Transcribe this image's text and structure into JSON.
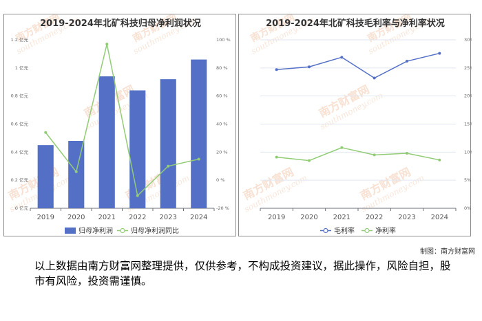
{
  "watermark": {
    "brand": "南方财富网",
    "url": "southmoney.com"
  },
  "chart_data": [
    {
      "type": "bar+line",
      "title": "2019-2024年北矿科技归母净利润状况",
      "categories": [
        "2019",
        "2020",
        "2021",
        "2022",
        "2023",
        "2024"
      ],
      "y_left": {
        "ticks": [
          "0 亿元",
          "0.2 亿元",
          "0.4 亿元",
          "0.6 亿元",
          "0.8 亿元",
          "1 亿元",
          "1.2 亿元"
        ],
        "ylim": [
          0,
          1.2
        ],
        "unit": "亿元"
      },
      "y_right": {
        "ticks": [
          "-20 %",
          "0 %",
          "20 %",
          "40 %",
          "60 %",
          "80 %",
          "100 %"
        ],
        "ylim": [
          -20,
          100
        ],
        "unit": "%"
      },
      "series": [
        {
          "name": "归母净利润",
          "kind": "bar",
          "axis": "left",
          "color": "#5470c6",
          "values": [
            0.45,
            0.48,
            0.94,
            0.84,
            0.92,
            1.06
          ]
        },
        {
          "name": "归母净利润同比",
          "kind": "line",
          "axis": "right",
          "color": "#91cc75",
          "values": [
            34,
            6,
            97,
            -11,
            10,
            15
          ]
        }
      ],
      "grid": false,
      "legend": "bottom-center"
    },
    {
      "type": "line",
      "title": "2019-2024年北矿科技毛利率与净利率状况",
      "categories": [
        "2019",
        "2020",
        "2021",
        "2022",
        "2023",
        "2024"
      ],
      "y_left": {
        "ticks": [
          "0%",
          "5%",
          "10%",
          "15%",
          "20%",
          "25%",
          "30%"
        ],
        "ylim": [
          0,
          30
        ],
        "unit": "%"
      },
      "series": [
        {
          "name": "毛利率",
          "color": "#5470c6",
          "values": [
            24.7,
            25.2,
            26.9,
            23.2,
            26.2,
            27.6
          ]
        },
        {
          "name": "净利率",
          "color": "#91cc75",
          "values": [
            9.1,
            8.5,
            10.8,
            9.5,
            9.8,
            8.6
          ]
        }
      ],
      "grid": true,
      "legend": "bottom-center"
    }
  ],
  "footer": {
    "credit": "制图：南方财富网",
    "disclaimer": "以上数据由南方财富网整理提供，仅供参考，不构成投资建议，据此操作，风险自担，股市有风险，投资需谨慎。"
  }
}
